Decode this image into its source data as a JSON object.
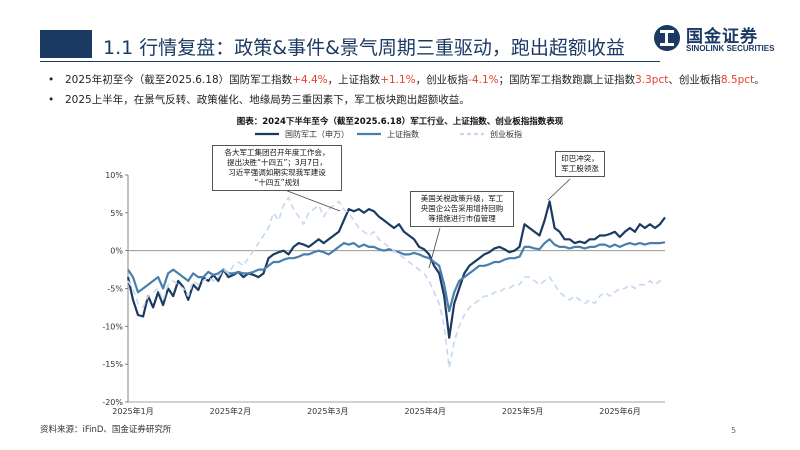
{
  "header": {
    "title": "1.1 行情复盘：政策&事件&景气周期三重驱动，跑出超额收益",
    "logo_cn": "国金证券",
    "logo_en": "SINOLINK SECURITIES",
    "brand_color": "#1b3a63"
  },
  "bullets": [
    {
      "dot": "•",
      "parts": [
        {
          "text": "2025年初至今（截至2025.6.18）国防军工指数",
          "hl": false
        },
        {
          "text": "+4.4%",
          "hl": true
        },
        {
          "text": "，上证指数",
          "hl": false
        },
        {
          "text": "+1.1%",
          "hl": true
        },
        {
          "text": "，创业板指",
          "hl": false
        },
        {
          "text": "-4.1%",
          "hl": true
        },
        {
          "text": "；国防军工指数跑赢上证指数",
          "hl": false
        },
        {
          "text": "3.3pct",
          "hl": true
        },
        {
          "text": "、创业板指",
          "hl": false
        },
        {
          "text": "8.5pct",
          "hl": true
        },
        {
          "text": "。",
          "hl": false
        }
      ]
    },
    {
      "dot": "•",
      "parts": [
        {
          "text": "2025上半年，在景气反转、政策催化、地缘局势三重因素下，军工板块跑出超额收益。",
          "hl": false
        }
      ]
    }
  ],
  "chart_title": "图表：2024下半年至今（截至2025.6.18）军工行业、上证指数、创业板指指数表现",
  "source": "资料来源：iFinD、国金证券研究所",
  "page_number": "5",
  "chart_data": {
    "type": "line",
    "legend": [
      "国防军工（申万）",
      "上证指数",
      "创业板指"
    ],
    "legend_position": "top",
    "ylim": [
      -20,
      10
    ],
    "yticks": [
      "10%",
      "5%",
      "0%",
      "-5%",
      "-10%",
      "-15%",
      "-20%"
    ],
    "xticks": [
      "2025年1月",
      "2025年2月",
      "2025年3月",
      "2025年4月",
      "2025年5月",
      "2025年6月"
    ],
    "grid": false,
    "series": [
      {
        "name": "国防军工（申万）",
        "color": "#1b3a63",
        "values": [
          -3.5,
          -6.5,
          -8.5,
          -8.7,
          -6.0,
          -7.5,
          -5.5,
          -7.2,
          -5.0,
          -6.0,
          -4.0,
          -4.8,
          -6.5,
          -4.5,
          -5.2,
          -3.5,
          -4.0,
          -3.2,
          -4.0,
          -2.5,
          -3.5,
          -3.2,
          -2.8,
          -3.5,
          -3.0,
          -3.2,
          -3.5,
          -3.0,
          -1.0,
          -0.5,
          -0.2,
          0.0,
          -0.5,
          0.5,
          1.0,
          0.8,
          0.5,
          1.0,
          1.5,
          1.0,
          1.5,
          2.0,
          2.5,
          4.0,
          5.5,
          5.2,
          5.5,
          5.0,
          5.5,
          5.2,
          4.5,
          4.0,
          3.5,
          3.0,
          3.5,
          2.5,
          2.0,
          1.5,
          0.5,
          0.2,
          -0.5,
          -2.0,
          -3.0,
          -6.0,
          -11.5,
          -7.0,
          -5.0,
          -3.0,
          -2.0,
          -1.5,
          -1.0,
          -0.5,
          -0.2,
          0.3,
          0.5,
          0.2,
          -0.2,
          0.0,
          0.5,
          3.5,
          3.0,
          2.5,
          2.0,
          4.0,
          6.5,
          3.0,
          2.5,
          1.5,
          1.5,
          1.0,
          1.2,
          1.0,
          1.5,
          1.5,
          2.0,
          2.0,
          2.2,
          2.5,
          1.8,
          2.5,
          3.0,
          2.5,
          3.5,
          3.0,
          3.5,
          3.0,
          3.5,
          4.4
        ]
      },
      {
        "name": "上证指数",
        "color": "#4a7fab",
        "values": [
          -2.5,
          -3.5,
          -5.5,
          -5.0,
          -4.5,
          -4.0,
          -3.5,
          -5.0,
          -3.0,
          -2.5,
          -3.0,
          -3.5,
          -4.0,
          -3.0,
          -3.5,
          -3.5,
          -2.8,
          -3.2,
          -3.0,
          -2.5,
          -3.0,
          -3.0,
          -2.8,
          -3.0,
          -3.0,
          -2.8,
          -2.5,
          -2.5,
          -2.0,
          -1.5,
          -1.5,
          -1.2,
          -1.0,
          -1.0,
          -0.8,
          -0.5,
          -0.5,
          -0.2,
          0.0,
          -0.2,
          -0.5,
          0.0,
          0.5,
          1.0,
          0.8,
          1.0,
          0.5,
          0.8,
          0.5,
          0.5,
          0.2,
          0.0,
          0.2,
          0.0,
          -0.2,
          -0.5,
          -0.5,
          -0.3,
          -0.5,
          -0.8,
          -1.0,
          -1.5,
          -2.0,
          -4.5,
          -8.0,
          -5.5,
          -4.0,
          -3.5,
          -3.0,
          -2.5,
          -2.0,
          -2.0,
          -1.8,
          -1.5,
          -1.5,
          -1.2,
          -1.0,
          -1.0,
          -0.8,
          0.5,
          0.5,
          0.3,
          0.2,
          1.0,
          1.5,
          0.8,
          0.5,
          0.5,
          0.3,
          0.5,
          0.5,
          0.3,
          0.5,
          0.5,
          0.8,
          0.8,
          0.5,
          0.8,
          0.5,
          0.8,
          1.0,
          0.8,
          1.0,
          0.8,
          1.0,
          1.0,
          1.0,
          1.1
        ]
      },
      {
        "name": "创业板指",
        "color": "#c5d9ee",
        "values": [
          -4.0,
          -5.0,
          -7.0,
          -7.5,
          -6.0,
          -5.5,
          -5.0,
          -6.5,
          -4.5,
          -4.0,
          -4.5,
          -5.0,
          -6.0,
          -4.0,
          -4.5,
          -4.0,
          -3.5,
          -4.0,
          -3.5,
          -2.5,
          -3.0,
          -2.0,
          -1.5,
          -2.0,
          -1.0,
          0.0,
          1.0,
          2.0,
          3.0,
          5.0,
          4.0,
          6.0,
          7.0,
          5.5,
          4.5,
          3.5,
          5.0,
          5.5,
          6.0,
          4.5,
          5.5,
          6.0,
          6.5,
          5.5,
          5.0,
          4.0,
          3.0,
          2.5,
          2.0,
          2.5,
          1.5,
          1.0,
          0.5,
          0.0,
          -0.5,
          -1.0,
          -1.5,
          -2.0,
          -2.5,
          -3.0,
          -4.0,
          -5.5,
          -7.0,
          -10.0,
          -15.5,
          -12.0,
          -10.0,
          -8.5,
          -7.5,
          -7.0,
          -6.5,
          -6.0,
          -6.0,
          -5.5,
          -5.5,
          -5.0,
          -5.0,
          -4.5,
          -4.5,
          -3.5,
          -3.5,
          -4.0,
          -4.5,
          -4.0,
          -3.5,
          -4.5,
          -5.5,
          -6.0,
          -6.5,
          -6.0,
          -6.5,
          -7.0,
          -6.5,
          -7.0,
          -6.0,
          -5.5,
          -6.0,
          -5.5,
          -5.0,
          -5.0,
          -4.5,
          -5.0,
          -4.5,
          -4.5,
          -4.0,
          -4.5,
          -4.0,
          -4.1
        ]
      }
    ],
    "annotations": [
      {
        "id": "ann1",
        "lines": [
          "各大军工集团召开年度工作会，",
          "提出决胜“十四五”；3月7日，",
          "习近平强调如期实现我军建设",
          "“十四五”规划"
        ]
      },
      {
        "id": "ann2",
        "lines": [
          "美国关税政策升级，军工",
          "央国企公告采用增持回购",
          "等措施进行市值管理"
        ]
      },
      {
        "id": "ann3",
        "lines": [
          "印巴冲突，",
          "军工股领涨"
        ]
      }
    ]
  }
}
